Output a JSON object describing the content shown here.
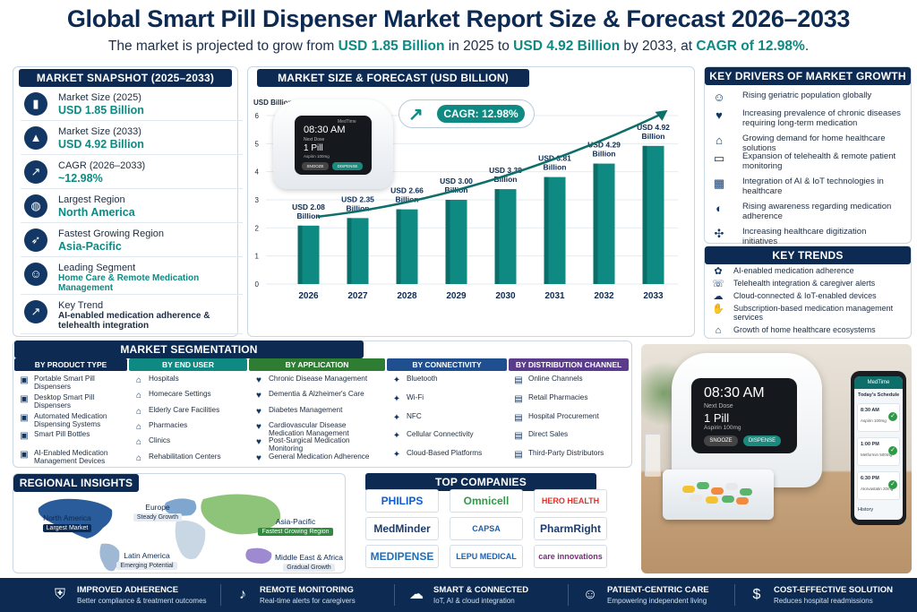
{
  "header": {
    "title": "Global Smart Pill Dispenser Market Report Size & Forecast 2026–2033",
    "subtitle_parts": [
      "The market is projected to grow from ",
      "USD 1.85 Billion",
      " in 2025 to ",
      "USD 4.92 Billion",
      " by 2033, at ",
      "CAGR of 12.98%",
      "."
    ]
  },
  "snapshot": {
    "heading": "MARKET SNAPSHOT (2025–2033)",
    "items": [
      {
        "label": "Market Size (2025)",
        "value": "USD 1.85 Billion",
        "icon": "bar-chart-icon"
      },
      {
        "label": "Market Size (2033)",
        "value": "USD 4.92 Billion",
        "icon": "growth-chart-icon"
      },
      {
        "label": "CAGR (2026–2033)",
        "value": "~12.98%",
        "icon": "trend-chart-icon"
      },
      {
        "label": "Largest Region",
        "value": "North America",
        "icon": "globe-icon"
      },
      {
        "label": "Fastest Growing Region",
        "value": "Asia-Pacific",
        "icon": "rocket-icon"
      },
      {
        "label": "Leading Segment",
        "value": "Home Care & Remote Medication Management",
        "icon": "people-icon"
      },
      {
        "label": "Key Trend",
        "value": "AI-enabled medication adherence & telehealth integration",
        "icon": "trend-arrow-icon"
      }
    ]
  },
  "forecast": {
    "heading": "MARKET SIZE & FORECAST (USD BILLION)",
    "cagr_label": "CAGR: 12.98%",
    "device": {
      "brand": "MedTime",
      "time": "08:30 AM",
      "next": "Next Dose",
      "dose": "1 Pill",
      "drug": "Aspirin 100mg",
      "btn1": "SNOOZE",
      "btn2": "DISPENSE"
    }
  },
  "chart_data": {
    "type": "bar",
    "ylabel": "USD Billion",
    "ylim": [
      0,
      6
    ],
    "yticks": [
      "0",
      "1",
      "2",
      "3",
      "4",
      "5",
      "6"
    ],
    "categories": [
      "2026",
      "2027",
      "2028",
      "2029",
      "2030",
      "2031",
      "2032",
      "2033"
    ],
    "values": [
      2.08,
      2.35,
      2.66,
      3.0,
      3.38,
      3.81,
      4.29,
      4.92
    ],
    "data_labels": [
      "USD 2.08 Billion",
      "USD 2.35 Billion",
      "USD 2.66 Billion",
      "USD 3.00 Billion",
      "USD 3.38 Billion",
      "USD 3.81 Billion",
      "USD 4.29 Billion",
      "USD 4.92 Billion"
    ],
    "bar_color": "#0e8a83",
    "trend_color": "#0e6e6a"
  },
  "drivers": {
    "heading": "KEY DRIVERS OF MARKET GROWTH",
    "items": [
      {
        "text": "Rising geriatric population globally",
        "icon": "elderly-icon"
      },
      {
        "text": "Increasing prevalence of chronic diseases requiring long-term medication",
        "icon": "heartbeat-icon"
      },
      {
        "text": "Growing demand for home healthcare solutions",
        "icon": "home-icon"
      },
      {
        "text": "Expansion of telehealth & remote patient monitoring",
        "icon": "monitor-icon"
      },
      {
        "text": "Integration of AI & IoT technologies in healthcare",
        "icon": "chip-icon"
      },
      {
        "text": "Rising awareness regarding medication adherence",
        "icon": "pill-icon"
      },
      {
        "text": "Increasing healthcare digitization initiatives",
        "icon": "network-icon"
      }
    ]
  },
  "trends": {
    "heading": "KEY TRENDS",
    "items": [
      {
        "text": "AI-enabled medication adherence",
        "icon": "brain-icon"
      },
      {
        "text": "Telehealth integration & caregiver alerts",
        "icon": "phone-icon"
      },
      {
        "text": "Cloud-connected & IoT-enabled devices",
        "icon": "cloud-icon"
      },
      {
        "text": "Subscription-based medication management services",
        "icon": "hand-pill-icon"
      },
      {
        "text": "Growth of home healthcare ecosystems",
        "icon": "house-icon"
      }
    ]
  },
  "segmentation": {
    "heading": "MARKET SEGMENTATION",
    "columns": [
      {
        "title": "BY PRODUCT TYPE",
        "color": "#0d2b52",
        "items": [
          "Portable Smart Pill Dispensers",
          "Desktop Smart Pill Dispensers",
          "Automated Medication Dispensing Systems",
          "Smart Pill Bottles",
          "AI-Enabled Medication Management Devices"
        ]
      },
      {
        "title": "BY END USER",
        "color": "#0e8a83",
        "items": [
          "Hospitals",
          "Homecare Settings",
          "Elderly Care Facilities",
          "Pharmacies",
          "Clinics",
          "Rehabilitation Centers"
        ]
      },
      {
        "title": "BY APPLICATION",
        "color": "#2e7d32",
        "items": [
          "Chronic Disease Management",
          "Dementia & Alzheimer's Care",
          "Diabetes Management",
          "Cardiovascular Disease Medication Management",
          "Post-Surgical Medication Monitoring",
          "General Medication Adherence"
        ]
      },
      {
        "title": "BY CONNECTIVITY TECHNOLOGY",
        "color": "#1f4f8f",
        "items": [
          "Bluetooth",
          "Wi-Fi",
          "NFC",
          "Cellular Connectivity",
          "Cloud-Based Platforms"
        ]
      },
      {
        "title": "BY DISTRIBUTION CHANNEL",
        "color": "#5b3b8c",
        "items": [
          "Online Channels",
          "Retail Pharmacies",
          "Hospital Procurement",
          "Direct Sales",
          "Third-Party Distributors"
        ]
      }
    ]
  },
  "regional": {
    "heading": "REGIONAL INSIGHTS",
    "regions": [
      {
        "name": "North America",
        "tag": "Largest Market"
      },
      {
        "name": "Europe",
        "tag": "Steady Growth"
      },
      {
        "name": "Asia-Pacific",
        "tag": "Fastest Growing Region"
      },
      {
        "name": "Latin America",
        "tag": "Emerging Potential"
      },
      {
        "name": "Middle East & Africa",
        "tag": "Gradual Growth"
      }
    ]
  },
  "companies": {
    "heading": "TOP COMPANIES",
    "items": [
      {
        "name": "PHILIPS",
        "color": "#0b5ed7"
      },
      {
        "name": "Omnicell",
        "color": "#2e9a46"
      },
      {
        "name": "HERO HEALTH",
        "color": "#d9362b"
      },
      {
        "name": "MedMinder",
        "color": "#1c3c6e"
      },
      {
        "name": "CAPSA HEALTHCARE",
        "color": "#1f5fa8"
      },
      {
        "name": "PharmRight",
        "color": "#1c3c6e"
      },
      {
        "name": "MEDIPENSE",
        "color": "#1f6fb8"
      },
      {
        "name": "LEPU MEDICAL",
        "color": "#1f5fa8"
      },
      {
        "name": "care innovations",
        "color": "#7a2b7a"
      }
    ]
  },
  "photo": {
    "device_time": "08:30 AM",
    "device_next": "Next Dose",
    "device_dose": "1 Pill",
    "device_drug": "Aspirin 100mg",
    "btn1": "SNOOZE",
    "btn2": "DISPENSE",
    "phone_app": "MedTime",
    "phone_title": "Today's Schedule",
    "schedule": [
      {
        "time": "8:30 AM",
        "drug": "Aspirin 100mg"
      },
      {
        "time": "1:00 PM",
        "drug": "Metformin 500mg"
      },
      {
        "time": "6:30 PM",
        "drug": "Atorvastatin 20mg"
      }
    ],
    "phone_history": "History"
  },
  "footer": {
    "items": [
      {
        "title": "IMPROVED ADHERENCE",
        "sub": "Better compliance & treatment outcomes",
        "icon": "shield-check-icon"
      },
      {
        "title": "REMOTE MONITORING",
        "sub": "Real-time alerts for caregivers",
        "icon": "bell-icon"
      },
      {
        "title": "SMART & CONNECTED",
        "sub": "IoT, AI & cloud integration",
        "icon": "cloud-network-icon"
      },
      {
        "title": "PATIENT-CENTRIC CARE",
        "sub": "Empowering independent living",
        "icon": "patient-icon"
      },
      {
        "title": "COST-EFFECTIVE SOLUTION",
        "sub": "Reduces hospital readmissions",
        "icon": "dollar-icon"
      }
    ]
  }
}
